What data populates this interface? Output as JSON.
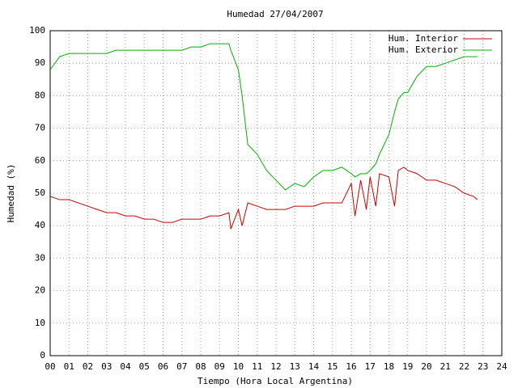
{
  "chart_data": {
    "type": "line",
    "title": "Humedad 27/04/2007",
    "x_label": "Tiempo (Hora Local Argentina)",
    "y_label": "Humedad (%)",
    "x": [
      0,
      0.5,
      1,
      1.5,
      2,
      2.5,
      3,
      3.5,
      4,
      4.5,
      5,
      5.5,
      6,
      6.5,
      7,
      7.5,
      8,
      8.5,
      9,
      9.5,
      9.6,
      10,
      10.2,
      10.5,
      11,
      11.5,
      12,
      12.5,
      13,
      13.5,
      14,
      14.5,
      15,
      15.5,
      16,
      16.2,
      16.5,
      16.8,
      17,
      17.3,
      17.5,
      18,
      18.3,
      18.5,
      18.8,
      19,
      19.5,
      20,
      20.5,
      21,
      21.5,
      22,
      22.5,
      22.7
    ],
    "series": [
      {
        "name": "Hum. Interior",
        "color": "#cc0000",
        "values": [
          49,
          48,
          48,
          47,
          46,
          45,
          44,
          44,
          43,
          43,
          42,
          42,
          41,
          41,
          42,
          42,
          42,
          43,
          43,
          44,
          39,
          45,
          40,
          47,
          46,
          45,
          45,
          45,
          46,
          46,
          46,
          47,
          47,
          47,
          53,
          43,
          54,
          45,
          55,
          46,
          56,
          55,
          46,
          57,
          58,
          57,
          56,
          54,
          54,
          53,
          52,
          50,
          49,
          48
        ]
      },
      {
        "name": "Hum. Exterior",
        "color": "#00b000",
        "values": [
          88,
          92,
          93,
          93,
          93,
          93,
          93,
          94,
          94,
          94,
          94,
          94,
          94,
          94,
          94,
          95,
          95,
          96,
          96,
          96,
          94,
          88,
          80,
          65,
          62,
          57,
          54,
          51,
          53,
          52,
          55,
          57,
          57,
          58,
          56,
          55,
          56,
          56,
          57,
          59,
          62,
          68,
          75,
          79,
          81,
          81,
          86,
          89,
          89,
          90,
          91,
          92,
          92,
          92
        ]
      }
    ],
    "xlim": [
      0,
      24
    ],
    "xticks": [
      {
        "value": 0,
        "label": "00"
      },
      {
        "value": 1,
        "label": "01"
      },
      {
        "value": 2,
        "label": "02"
      },
      {
        "value": 3,
        "label": "03"
      },
      {
        "value": 4,
        "label": "04"
      },
      {
        "value": 5,
        "label": "05"
      },
      {
        "value": 6,
        "label": "06"
      },
      {
        "value": 7,
        "label": "07"
      },
      {
        "value": 8,
        "label": "08"
      },
      {
        "value": 9,
        "label": "09"
      },
      10,
      11,
      12,
      13,
      14,
      15,
      16,
      17,
      18,
      19,
      20,
      21,
      22,
      23,
      24
    ],
    "ylim": [
      0,
      100
    ],
    "yticks": [
      0,
      10,
      20,
      30,
      40,
      50,
      60,
      70,
      80,
      90,
      100
    ],
    "grid": true,
    "legend": "top-right"
  }
}
